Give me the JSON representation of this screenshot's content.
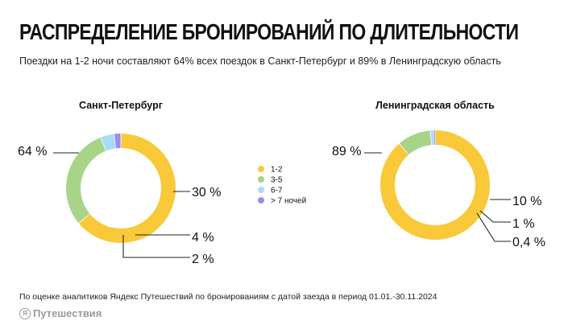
{
  "title": "РАСПРЕДЕЛЕНИЕ БРОНИРОВАНИЙ ПО ДЛИТЕЛЬНОСТИ",
  "subtitle": "Поездки на 1-2 ночи составляют 64% всех поездок в Санкт-Петербург и 89% в Ленинградскую область",
  "note": "По оценке аналитиков Яндекс Путешествий по бронированиям с датой заезда в период 01.01.-30.11.2024",
  "brand": {
    "logo_letter": "Я",
    "label": "Путешествия"
  },
  "colors": {
    "1-2": "#f9c93a",
    "3-5": "#a8d48a",
    "6-7": "#a7dcf5",
    "> 7 ночей": "#9a8cf0"
  },
  "chart_data": [
    {
      "type": "pie",
      "variant": "donut",
      "title": "Санкт-Петербург",
      "categories": [
        "1-2",
        "3-5",
        "6-7",
        "> 7 ночей"
      ],
      "values": [
        64,
        30,
        4,
        2
      ],
      "labels": [
        "64 %",
        "30 %",
        "4 %",
        "2 %"
      ]
    },
    {
      "type": "pie",
      "variant": "donut",
      "title": "Ленинградская область",
      "categories": [
        "1-2",
        "3-5",
        "6-7",
        "> 7 ночей"
      ],
      "values": [
        89,
        10,
        1,
        0.4
      ],
      "labels": [
        "89 %",
        "10 %",
        "1 %",
        "0,4 %"
      ]
    }
  ],
  "legend": [
    "1-2",
    "3-5",
    "6-7",
    "> 7 ночей"
  ]
}
